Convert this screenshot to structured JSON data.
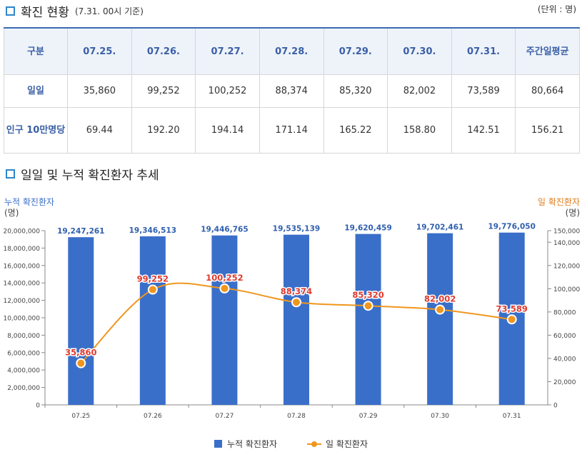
{
  "section1": {
    "title": "확진 현황",
    "subtitle": "(7.31. 00시 기준)",
    "unit": "(단위 : 명)"
  },
  "table": {
    "headers": [
      "구분",
      "07.25.",
      "07.26.",
      "07.27.",
      "07.28.",
      "07.29.",
      "07.30.",
      "07.31.",
      "주간일평균"
    ],
    "rows": [
      {
        "label": "일일",
        "values": [
          "35,860",
          "99,252",
          "100,252",
          "88,374",
          "85,320",
          "82,002",
          "73,589",
          "80,664"
        ]
      },
      {
        "label": "인구 10만명당",
        "values": [
          "69.44",
          "192.20",
          "194.14",
          "171.14",
          "165.22",
          "158.80",
          "142.51",
          "156.21"
        ]
      }
    ]
  },
  "section2": {
    "title": "일일 및 누적 확진환자 추세"
  },
  "chart_data": {
    "type": "bar+line",
    "categories": [
      "07.25",
      "07.26",
      "07.27",
      "07.28",
      "07.29",
      "07.30",
      "07.31"
    ],
    "series": [
      {
        "name": "누적 확진환자",
        "type": "bar",
        "axis": "left",
        "color": "#3a6fc9",
        "label_color": "#2f5fae",
        "values": [
          19247261,
          19346513,
          19446765,
          19535139,
          19620459,
          19702461,
          19776050
        ],
        "labels": [
          "19,247,261",
          "19,346,513",
          "19,446,765",
          "19,535,139",
          "19,620,459",
          "19,702,461",
          "19,776,050"
        ]
      },
      {
        "name": "일 확진환자",
        "type": "line",
        "axis": "right",
        "color": "#f0961e",
        "label_color": "#e0392e",
        "values": [
          35860,
          99252,
          100252,
          88374,
          85320,
          82002,
          73589
        ],
        "labels": [
          "35,860",
          "99,252",
          "100,252",
          "88,374",
          "85,320",
          "82,002",
          "73,589"
        ]
      }
    ],
    "left_axis": {
      "title": "누적 확진환자",
      "unit": "(명)",
      "range": [
        0,
        20000000
      ],
      "ticks": [
        "0",
        "2,000,000",
        "4,000,000",
        "6,000,000",
        "8,000,000",
        "10,000,000",
        "12,000,000",
        "14,000,000",
        "16,000,000",
        "18,000,000",
        "20,000,000"
      ]
    },
    "right_axis": {
      "title": "일 확진환자",
      "unit": "(명)",
      "range": [
        0,
        150000
      ],
      "ticks": [
        "0",
        "20,000",
        "40,000",
        "60,000",
        "80,000",
        "100,000",
        "120,000",
        "140,000",
        "150,000"
      ],
      "tick_values": [
        0,
        20000,
        40000,
        60000,
        80000,
        100000,
        120000,
        140000,
        150000
      ]
    },
    "left_title_color": "#3a6fc9",
    "right_title_color": "#e07b1a",
    "legend_position": "bottom"
  }
}
